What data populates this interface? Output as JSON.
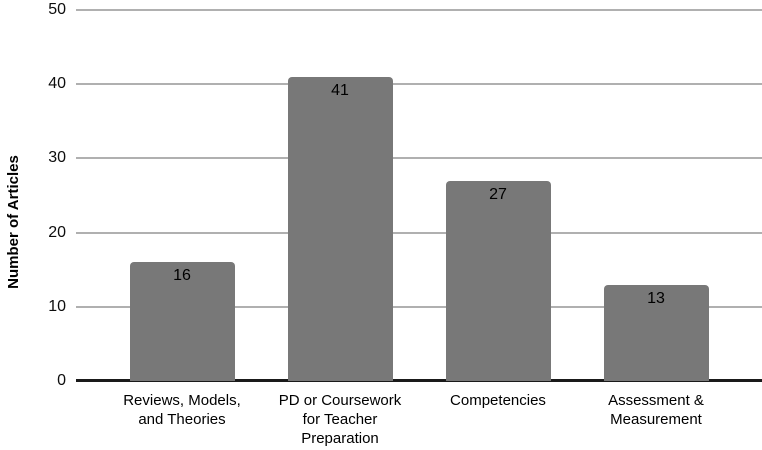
{
  "chart_data": {
    "type": "bar",
    "title": "",
    "xlabel": "",
    "ylabel": "Number of Articles",
    "categories": [
      "Reviews, Models,\nand Theories",
      "PD or Coursework\nfor Teacher\nPreparation",
      "Competencies",
      "Assessment &\nMeasurement"
    ],
    "values": [
      16,
      41,
      27,
      13
    ],
    "data_labels": [
      "16",
      "41",
      "27",
      "13"
    ],
    "ylim": [
      0,
      50
    ],
    "yticks": [
      0,
      10,
      20,
      30,
      40,
      50
    ],
    "grid": true,
    "legend": false,
    "colors": {
      "bar_fill": "#787878",
      "gridline": "#b0b0b0",
      "axis_line": "#1a1a1a",
      "text": "#000000",
      "background": "#ffffff"
    }
  }
}
